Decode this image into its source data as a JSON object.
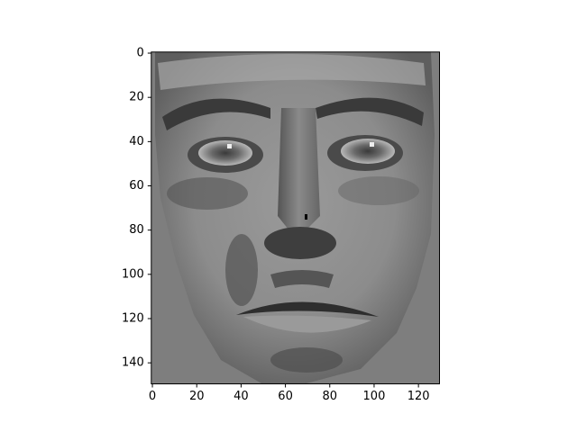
{
  "chart_data": {
    "type": "image",
    "xlim": [
      -0.5,
      129.5
    ],
    "ylim": [
      149.5,
      -0.5
    ],
    "xticks": [
      0,
      20,
      40,
      60,
      80,
      100,
      120
    ],
    "yticks": [
      0,
      20,
      40,
      60,
      80,
      100,
      120,
      140
    ]
  }
}
